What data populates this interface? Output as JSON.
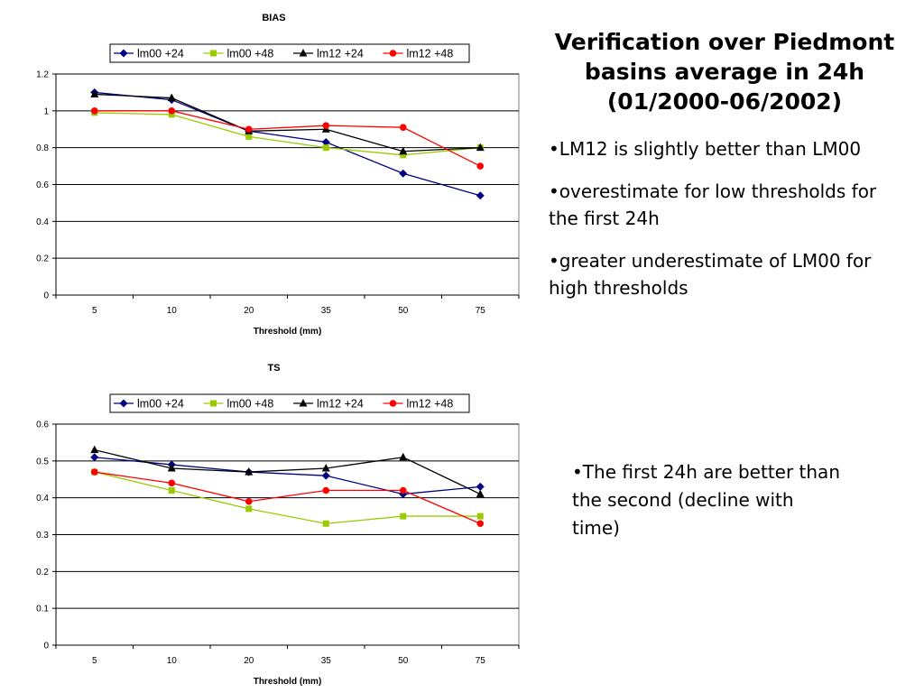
{
  "slide": {
    "title": "Verification over Piedmont basins average in 24h (01/2000-06/2002)",
    "bullets_top": [
      "•LM12 is slightly better than LM00",
      "•overestimate for low thresholds for the first 24h",
      "•greater underestimate of LM00 for high thresholds"
    ],
    "bullets_bottom": [
      "•The first 24h are better than the second (decline with time)"
    ]
  },
  "colors": {
    "lm00_24": "#000080",
    "lm00_48": "#99CC00",
    "lm12_24": "#000000",
    "lm12_48": "#FF0000",
    "plot_background": "#ffffff",
    "gridline": "#000000"
  },
  "chart_data": [
    {
      "type": "line",
      "title": "BIAS",
      "xlabel": "Threshold (mm)",
      "ylabel": "",
      "categories": [
        "5",
        "10",
        "20",
        "35",
        "50",
        "75"
      ],
      "ylim": [
        0,
        1.2
      ],
      "yticks": [
        "0",
        "0.2",
        "0.4",
        "0.6",
        "0.8",
        "1",
        "1.2"
      ],
      "grid": true,
      "legend": "top",
      "series": [
        {
          "name": "lm00 +24",
          "marker": "diamond",
          "color_key": "lm00_24",
          "values": [
            1.1,
            1.06,
            0.89,
            0.83,
            0.66,
            0.54
          ]
        },
        {
          "name": "lm00 +48",
          "marker": "square",
          "color_key": "lm00_48",
          "values": [
            0.99,
            0.98,
            0.86,
            0.8,
            0.76,
            0.8
          ]
        },
        {
          "name": "lm12 +24",
          "marker": "triangle",
          "color_key": "lm12_24",
          "values": [
            1.09,
            1.07,
            0.89,
            0.9,
            0.78,
            0.8
          ]
        },
        {
          "name": "lm12 +48",
          "marker": "circle",
          "color_key": "lm12_48",
          "values": [
            1.0,
            1.0,
            0.9,
            0.92,
            0.91,
            0.7
          ]
        }
      ]
    },
    {
      "type": "line",
      "title": "TS",
      "xlabel": "Threshold (mm)",
      "ylabel": "",
      "categories": [
        "5",
        "10",
        "20",
        "35",
        "50",
        "75"
      ],
      "ylim": [
        0,
        0.6
      ],
      "yticks": [
        "0",
        "0.1",
        "0.2",
        "0.3",
        "0.4",
        "0.5",
        "0.6"
      ],
      "grid": true,
      "legend": "top",
      "series": [
        {
          "name": "lm00 +24",
          "marker": "diamond",
          "color_key": "lm00_24",
          "values": [
            0.51,
            0.49,
            0.47,
            0.46,
            0.41,
            0.43
          ]
        },
        {
          "name": "lm00 +48",
          "marker": "square",
          "color_key": "lm00_48",
          "values": [
            0.47,
            0.42,
            0.37,
            0.33,
            0.35,
            0.35
          ]
        },
        {
          "name": "lm12 +24",
          "marker": "triangle",
          "color_key": "lm12_24",
          "values": [
            0.53,
            0.48,
            0.47,
            0.48,
            0.51,
            0.41
          ]
        },
        {
          "name": "lm12 +48",
          "marker": "circle",
          "color_key": "lm12_48",
          "values": [
            0.47,
            0.44,
            0.39,
            0.42,
            0.42,
            0.33
          ]
        }
      ]
    }
  ]
}
